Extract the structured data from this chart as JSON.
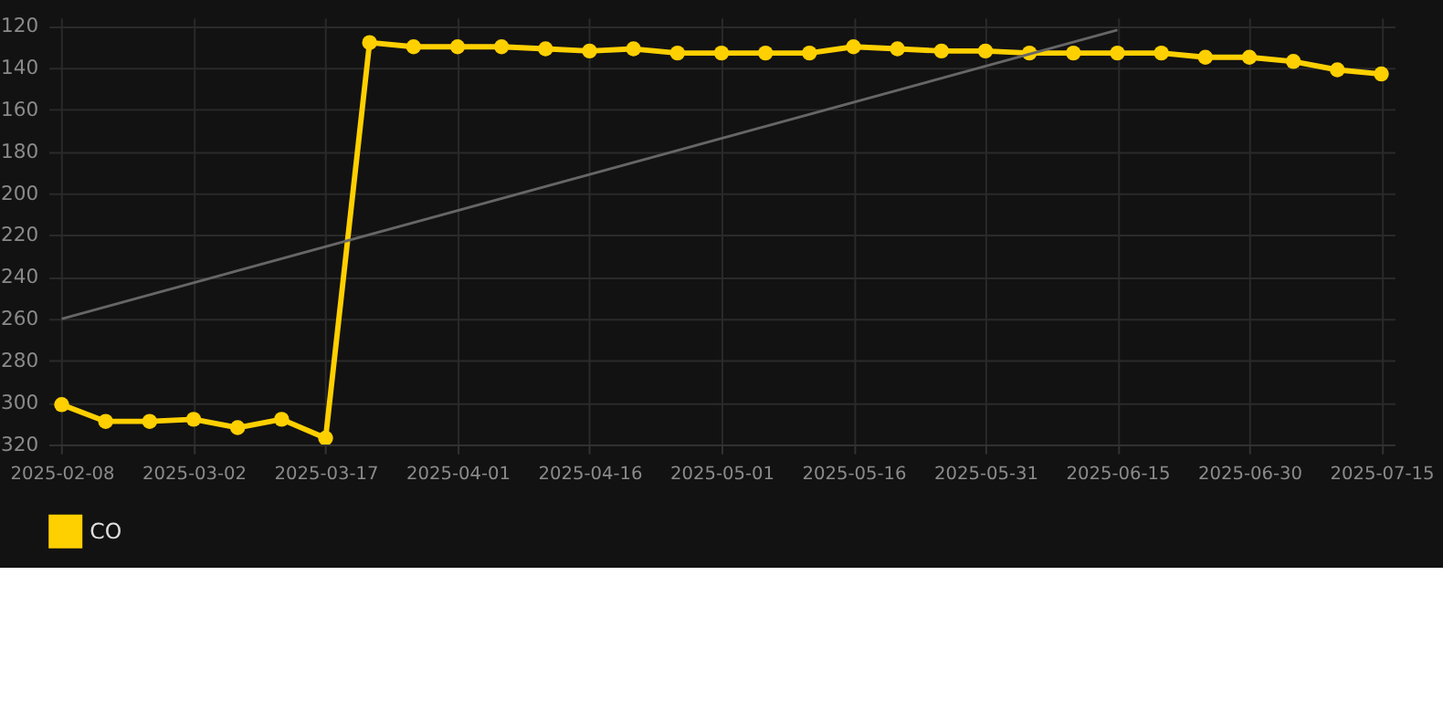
{
  "chart_data": {
    "type": "line",
    "categories": [
      "2025-02-08",
      null,
      null,
      "2025-03-02",
      null,
      null,
      "2025-03-17",
      null,
      null,
      "2025-04-01",
      null,
      null,
      "2025-04-16",
      null,
      null,
      "2025-05-01",
      null,
      null,
      "2025-05-16",
      null,
      null,
      "2025-05-31",
      null,
      null,
      "2025-06-15",
      null,
      null,
      "2025-06-30",
      null,
      null,
      "2025-07-15"
    ],
    "series": [
      {
        "name": "CO",
        "color": "#ffd000",
        "marker": "circle",
        "values": [
          301,
          309,
          309,
          308,
          312,
          308,
          317,
          128,
          130,
          130,
          130,
          131,
          132,
          131,
          133,
          133,
          133,
          133,
          130,
          131,
          132,
          132,
          133,
          133,
          133,
          133,
          135,
          135,
          137,
          141,
          143
        ]
      },
      {
        "type": "line",
        "color": "#666666",
        "marker": "none",
        "values": [
          260,
          null,
          null,
          null,
          null,
          null,
          null,
          null,
          null,
          null,
          null,
          null,
          null,
          null,
          null,
          null,
          null,
          null,
          null,
          null,
          null,
          null,
          null,
          null,
          122,
          null,
          null,
          null,
          null,
          null,
          null
        ]
      }
    ],
    "ylim": [
      320,
      116
    ],
    "yticks": [
      120,
      140,
      160,
      180,
      200,
      220,
      240,
      260,
      280,
      300,
      320
    ],
    "grid": true,
    "legend": "bottom"
  }
}
